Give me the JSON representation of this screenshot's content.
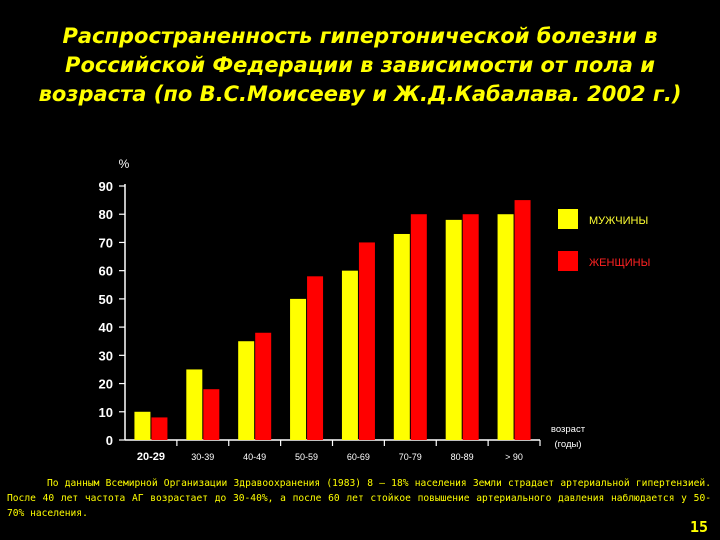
{
  "slide": {
    "title": "Распространенность гипертонической болезни в Российской Федерации в зависимости от пола и возраста (по В.С.Моисееву и Ж.Д.Кабалава. 2002 г.)",
    "footnote": "По данным Всемирной Организации Здравоохранения (1983) 8 – 18% населения Земли страдает артериальной гипертензией. После 40 лет частота АГ возрастает до 30-40%, а после 60 лет стойкое повышение артериального давления наблюдается у 50-70% населения.",
    "page_number": "15"
  },
  "chart_data": {
    "type": "bar",
    "title": "",
    "ylabel": "%",
    "xlabel": "возраст (годы)",
    "xlabel_lines": [
      "возраст",
      "(годы)"
    ],
    "ylim": [
      0,
      90
    ],
    "yticks": [
      0,
      10,
      20,
      30,
      40,
      50,
      60,
      70,
      80,
      90
    ],
    "categories": [
      "20-29",
      "30-39",
      "40-49",
      "50-59",
      "60-69",
      "70-79",
      "80-89",
      "> 90"
    ],
    "series": [
      {
        "name": "МУЖЧИНЫ",
        "color": "#ffff00",
        "values": [
          10,
          25,
          35,
          50,
          60,
          73,
          78,
          80
        ]
      },
      {
        "name": "ЖЕНЩИНЫ",
        "color": "#ff0000",
        "values": [
          8,
          18,
          38,
          58,
          70,
          80,
          80,
          85
        ]
      }
    ],
    "grid": false,
    "legend": "right",
    "text_color": "#ffffff",
    "axis_color": "#ffffff"
  }
}
